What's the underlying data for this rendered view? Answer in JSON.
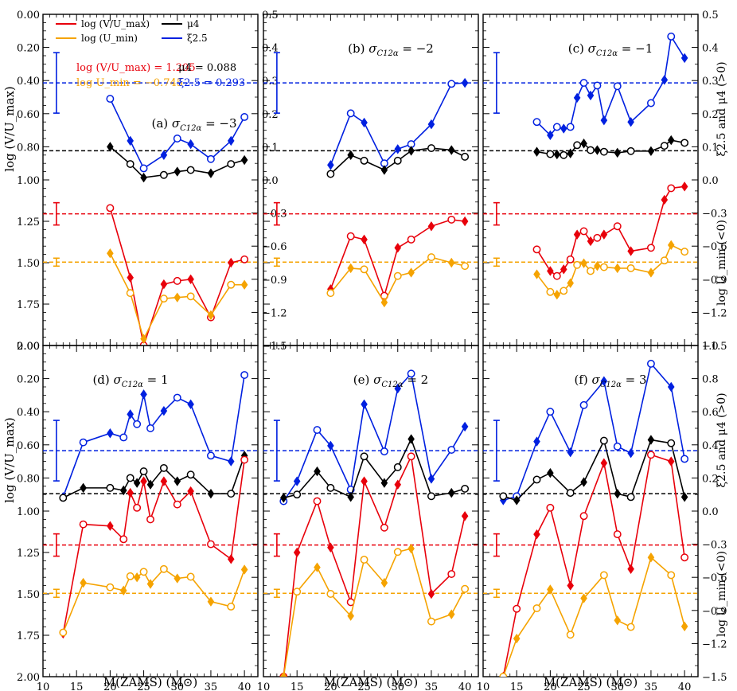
{
  "figure": {
    "x_axis_label": "M(ZAMS) (M⊙)",
    "left_axis_label": "log (V/U_max)",
    "right_axis_label_top": "ξ2.5 and μ4 (>0)",
    "right_axis_label_bottom": "log U_min (<0)"
  },
  "legend": {
    "entries": [
      {
        "label": "log (V/U_max)",
        "color": "#e8000b"
      },
      {
        "label": "log (U_min)",
        "color": "#f5a300"
      },
      {
        "label": "μ4",
        "color": "#000000"
      },
      {
        "label": "ξ2.5",
        "color": "#0020e0"
      }
    ],
    "reference_values": {
      "logV": "log (V/U_max) = 1.205",
      "logUmin": "log U_min = −0.745",
      "mu4": "μ4 = 0.088",
      "xi": "ξ2.5 = 0.293"
    }
  },
  "colors": {
    "logV": "#e8000b",
    "logUmin": "#f5a300",
    "mu4": "#000000",
    "xi": "#0020e0"
  },
  "chart_data": [
    {
      "type": "line",
      "panel": "(a)",
      "title": "(a) σC12α = −3",
      "xlim": [
        10,
        42
      ],
      "ylim_left": [
        2.0,
        0.0
      ],
      "ylim_right_top": [
        -1.5,
        0.5
      ],
      "xticks": [
        "10",
        "15",
        "20",
        "25",
        "30",
        "35",
        "40"
      ],
      "yticks_left": [
        "0.00",
        "0.20",
        "0.40",
        "0.60",
        "0.80",
        "1.00",
        "1.25",
        "1.50",
        "1.75",
        "2.00"
      ],
      "yticks_right": [
        "0.5",
        "0.4",
        "0.3",
        "0.2",
        "0.1",
        "0.0",
        "−0.3",
        "−0.6",
        "−0.9",
        "−1.2",
        "−1.5"
      ],
      "reference_lines": {
        "xi": 0.293,
        "mu4": 0.088,
        "logV": 1.205,
        "logUmin": -0.745
      },
      "series": [
        {
          "name": "ξ2.5",
          "x": [
            20,
            23,
            25,
            28,
            30,
            32,
            35,
            38,
            40
          ],
          "values": [
            0.245,
            0.118,
            0.035,
            0.075,
            0.125,
            0.108,
            0.063,
            0.118,
            0.19
          ]
        },
        {
          "name": "μ4",
          "x": [
            20,
            23,
            25,
            28,
            30,
            32,
            35,
            38,
            40
          ],
          "values": [
            0.1,
            0.048,
            0.007,
            0.015,
            0.025,
            0.03,
            0.02,
            0.048,
            0.06
          ]
        },
        {
          "name": "log (V/U_max)",
          "x": [
            20,
            23,
            25,
            28,
            30,
            32,
            35,
            38,
            40
          ],
          "values": [
            1.17,
            1.59,
            2.0,
            1.63,
            1.61,
            1.6,
            1.83,
            1.5,
            1.48
          ]
        },
        {
          "name": "log (U_min)",
          "x": [
            20,
            23,
            25,
            28,
            30,
            32,
            35,
            38,
            40
          ],
          "values": [
            -0.665,
            -1.025,
            -1.44,
            -1.075,
            -1.065,
            -1.055,
            -1.225,
            -0.95,
            -0.95
          ]
        }
      ]
    },
    {
      "type": "line",
      "panel": "(b)",
      "title": "(b) σC12α = −2",
      "xlim": [
        10,
        42
      ],
      "ylim_left": [
        2.0,
        0.0
      ],
      "ylim_right_top": [
        -1.5,
        0.5
      ],
      "xticks": [
        "10",
        "15",
        "20",
        "25",
        "30",
        "35",
        "40"
      ],
      "yticks_left": [],
      "yticks_right": [],
      "reference_lines": {
        "xi": 0.293,
        "mu4": 0.088,
        "logV": 1.205,
        "logUmin": -0.745
      },
      "series": [
        {
          "name": "ξ2.5",
          "x": [
            20,
            23,
            25,
            28,
            30,
            32,
            35,
            38,
            40
          ],
          "values": [
            0.045,
            0.201,
            0.173,
            0.05,
            0.093,
            0.108,
            0.168,
            0.29,
            0.293
          ]
        },
        {
          "name": "μ4",
          "x": [
            20,
            23,
            25,
            28,
            30,
            32,
            35,
            38,
            40
          ],
          "values": [
            0.018,
            0.075,
            0.058,
            0.03,
            0.058,
            0.088,
            0.096,
            0.09,
            0.07
          ]
        },
        {
          "name": "log (V/U_max)",
          "x": [
            20,
            23,
            25,
            28,
            30,
            32,
            35,
            38,
            40
          ],
          "values": [
            1.66,
            1.34,
            1.36,
            1.7,
            1.41,
            1.36,
            1.28,
            1.24,
            1.25
          ]
        },
        {
          "name": "log (U_min)",
          "x": [
            20,
            23,
            25,
            28,
            30,
            32,
            35,
            38,
            40
          ],
          "values": [
            -1.025,
            -0.8,
            -0.81,
            -1.11,
            -0.87,
            -0.84,
            -0.7,
            -0.75,
            -0.78
          ]
        }
      ]
    },
    {
      "type": "line",
      "panel": "(c)",
      "title": "(c) σC12α = −1",
      "xlim": [
        10,
        42
      ],
      "ylim_left": [
        2.0,
        0.0
      ],
      "ylim_right_top": [
        -1.5,
        0.5
      ],
      "xticks": [
        "10",
        "15",
        "20",
        "25",
        "30",
        "35",
        "40"
      ],
      "yticks_left": [],
      "yticks_right": [
        "0.5",
        "0.4",
        "0.3",
        "0.2",
        "0.1",
        "0.0",
        "−0.3",
        "−0.6",
        "−0.9",
        "−1.2",
        "−1.5"
      ],
      "reference_lines": {
        "xi": 0.293,
        "mu4": 0.088,
        "logV": 1.205,
        "logUmin": -0.745
      },
      "series": [
        {
          "name": "ξ2.5",
          "x": [
            18,
            20,
            21,
            22,
            23,
            24,
            25,
            26,
            27,
            28,
            30,
            32,
            35,
            37,
            38,
            40
          ],
          "values": [
            0.175,
            0.135,
            0.16,
            0.155,
            0.16,
            0.248,
            0.293,
            0.255,
            0.285,
            0.18,
            0.283,
            0.175,
            0.232,
            0.302,
            0.433,
            0.368
          ]
        },
        {
          "name": "μ4",
          "x": [
            18,
            20,
            21,
            22,
            23,
            24,
            25,
            26,
            27,
            28,
            30,
            32,
            35,
            37,
            38,
            40
          ],
          "values": [
            0.085,
            0.078,
            0.077,
            0.075,
            0.08,
            0.105,
            0.11,
            0.09,
            0.09,
            0.085,
            0.082,
            0.087,
            0.087,
            0.103,
            0.12,
            0.112
          ]
        },
        {
          "name": "log (V/U_max)",
          "x": [
            18,
            20,
            21,
            22,
            23,
            24,
            25,
            26,
            27,
            28,
            30,
            32,
            35,
            37,
            38,
            40
          ],
          "values": [
            1.42,
            1.55,
            1.58,
            1.54,
            1.48,
            1.33,
            1.31,
            1.37,
            1.35,
            1.33,
            1.28,
            1.43,
            1.41,
            1.12,
            1.05,
            1.04
          ]
        },
        {
          "name": "log (U_min)",
          "x": [
            18,
            20,
            21,
            22,
            23,
            24,
            25,
            26,
            27,
            28,
            30,
            32,
            35,
            37,
            38,
            40
          ],
          "values": [
            -0.855,
            -1.015,
            -1.04,
            -1.005,
            -0.935,
            -0.77,
            -0.755,
            -0.825,
            -0.78,
            -0.79,
            -0.8,
            -0.8,
            -0.84,
            -0.73,
            -0.59,
            -0.65
          ]
        }
      ]
    },
    {
      "type": "line",
      "panel": "(d)",
      "title": "(d) σC12α = 1",
      "xlim": [
        10,
        42
      ],
      "ylim_left": [
        2.0,
        0.0
      ],
      "ylim_right_top": [
        -1.5,
        1.0
      ],
      "xticks": [
        "10",
        "15",
        "20",
        "25",
        "30",
        "35",
        "40"
      ],
      "yticks_left": [
        "0.00",
        "0.20",
        "0.40",
        "0.60",
        "0.80",
        "1.00",
        "1.25",
        "1.50",
        "1.75",
        "2.00"
      ],
      "yticks_right": [],
      "reference_lines": {
        "xi": 0.365,
        "mu4": 0.105,
        "logV": 1.205,
        "logUmin": -0.745
      },
      "series": [
        {
          "name": "ξ2.5",
          "x": [
            13,
            16,
            20,
            22,
            23,
            24,
            25,
            26,
            28,
            30,
            32,
            35,
            38,
            40
          ],
          "values": [
            0.085,
            0.415,
            0.47,
            0.445,
            0.585,
            0.525,
            0.705,
            0.5,
            0.605,
            0.685,
            0.645,
            0.335,
            0.3,
            0.822
          ]
        },
        {
          "name": "μ4",
          "x": [
            13,
            16,
            20,
            22,
            23,
            24,
            25,
            26,
            28,
            30,
            32,
            35,
            38,
            40
          ],
          "values": [
            0.08,
            0.14,
            0.14,
            0.125,
            0.2,
            0.17,
            0.24,
            0.16,
            0.26,
            0.18,
            0.22,
            0.105,
            0.105,
            0.335
          ]
        },
        {
          "name": "log (V/U_max)",
          "x": [
            13,
            16,
            20,
            22,
            23,
            24,
            25,
            26,
            28,
            30,
            32,
            35,
            38,
            40
          ],
          "values": [
            1.74,
            1.08,
            1.09,
            1.17,
            0.89,
            0.98,
            0.82,
            1.05,
            0.82,
            0.96,
            0.88,
            1.2,
            1.29,
            0.69
          ]
        },
        {
          "name": "log (U_min)",
          "x": [
            13,
            16,
            20,
            22,
            23,
            24,
            25,
            26,
            28,
            30,
            32,
            35,
            38,
            40
          ],
          "values": [
            -1.1,
            -0.65,
            -0.69,
            -0.72,
            -0.59,
            -0.6,
            -0.55,
            -0.66,
            -0.525,
            -0.61,
            -0.595,
            -0.82,
            -0.865,
            -0.53
          ]
        }
      ]
    },
    {
      "type": "line",
      "panel": "(e)",
      "title": "(e) σC12α = 2",
      "xlim": [
        10,
        42
      ],
      "ylim_left": [
        2.0,
        0.0
      ],
      "ylim_right_top": [
        -1.5,
        1.0
      ],
      "xticks": [
        "10",
        "15",
        "20",
        "25",
        "30",
        "35",
        "40"
      ],
      "yticks_left": [],
      "yticks_right": [],
      "reference_lines": {
        "xi": 0.365,
        "mu4": 0.105,
        "logV": 1.205,
        "logUmin": -0.745
      },
      "series": [
        {
          "name": "ξ2.5",
          "x": [
            13,
            15,
            18,
            20,
            23,
            25,
            28,
            30,
            32,
            35,
            38,
            40
          ],
          "values": [
            0.06,
            0.18,
            0.49,
            0.395,
            0.13,
            0.645,
            0.36,
            0.74,
            0.83,
            0.195,
            0.37,
            0.51
          ]
        },
        {
          "name": "μ4",
          "x": [
            13,
            15,
            18,
            20,
            23,
            25,
            28,
            30,
            32,
            35,
            38,
            40
          ],
          "values": [
            0.08,
            0.1,
            0.24,
            0.14,
            0.085,
            0.33,
            0.17,
            0.265,
            0.435,
            0.09,
            0.11,
            0.135
          ]
        },
        {
          "name": "log (V/U_max)",
          "x": [
            13,
            15,
            18,
            20,
            23,
            25,
            28,
            30,
            32,
            35,
            38,
            40
          ],
          "values": [
            2.0,
            1.25,
            0.94,
            1.22,
            1.55,
            0.82,
            1.1,
            0.84,
            0.67,
            1.5,
            1.38,
            1.03
          ]
        },
        {
          "name": "log (U_min)",
          "x": [
            13,
            15,
            18,
            20,
            23,
            25,
            28,
            30,
            32,
            35,
            38,
            40
          ],
          "values": [
            -1.5,
            -0.73,
            -0.51,
            -0.75,
            -0.95,
            -0.44,
            -0.65,
            -0.37,
            -0.34,
            -1.0,
            -0.935,
            -0.705
          ]
        }
      ]
    },
    {
      "type": "line",
      "panel": "(f)",
      "title": "(f) σC12α = 3",
      "xlim": [
        10,
        42
      ],
      "ylim_left": [
        2.0,
        0.0
      ],
      "ylim_right_top": [
        -1.5,
        1.0
      ],
      "xticks": [
        "10",
        "15",
        "20",
        "25",
        "30",
        "35",
        "40"
      ],
      "yticks_left": [],
      "yticks_right": [
        "1.0",
        "0.8",
        "0.6",
        "0.4",
        "0.2",
        "0.0",
        "−0.3",
        "−0.6",
        "−0.9",
        "−1.2",
        "−1.5"
      ],
      "reference_lines": {
        "xi": 0.365,
        "mu4": 0.105,
        "logV": 1.205,
        "logUmin": -0.745
      },
      "series": [
        {
          "name": "ξ2.5",
          "x": [
            13,
            15,
            18,
            20,
            23,
            25,
            28,
            30,
            32,
            35,
            38,
            40
          ],
          "values": [
            0.065,
            0.09,
            0.42,
            0.6,
            0.355,
            0.64,
            0.785,
            0.39,
            0.35,
            0.89,
            0.75,
            0.315
          ]
        },
        {
          "name": "μ4",
          "x": [
            13,
            15,
            18,
            20,
            23,
            25,
            28,
            30,
            32,
            35,
            38,
            40
          ],
          "values": [
            0.09,
            0.065,
            0.19,
            0.23,
            0.11,
            0.175,
            0.425,
            0.105,
            0.085,
            0.43,
            0.41,
            0.085
          ]
        },
        {
          "name": "log (V/U_max)",
          "x": [
            13,
            15,
            18,
            20,
            23,
            25,
            28,
            30,
            32,
            35,
            38,
            40
          ],
          "values": [
            2.0,
            1.59,
            1.14,
            0.98,
            1.45,
            1.03,
            0.71,
            1.14,
            1.35,
            0.66,
            0.7,
            1.28
          ]
        },
        {
          "name": "log (U_min)",
          "x": [
            13,
            15,
            18,
            20,
            23,
            25,
            28,
            30,
            32,
            35,
            38,
            40
          ],
          "values": [
            -1.5,
            -1.155,
            -0.88,
            -0.71,
            -1.12,
            -0.79,
            -0.58,
            -0.99,
            -1.05,
            -0.42,
            -0.58,
            -1.045
          ]
        }
      ]
    }
  ]
}
